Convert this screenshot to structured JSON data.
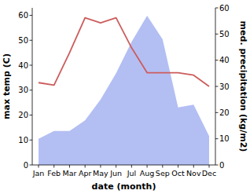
{
  "chart_data": {
    "type": "line",
    "xlabel": "date (month)",
    "ylabel": "max temp (C)",
    "y2label": "med. precipitation (kg/m2)",
    "categories": [
      "Jan",
      "Feb",
      "Mar",
      "Apr",
      "May",
      "Jun",
      "Jul",
      "Aug",
      "Sep",
      "Oct",
      "Nov",
      "Dec"
    ],
    "ylim": [
      0,
      63
    ],
    "yticks": [
      0,
      10,
      20,
      30,
      40,
      50,
      60
    ],
    "y2lim": [
      0,
      60
    ],
    "y2ticks": [
      0,
      10,
      20,
      30,
      40,
      50,
      60
    ],
    "series": [
      {
        "type": "area",
        "axis": "y2",
        "color": "#b3bff3",
        "values": [
          10,
          13,
          13,
          17,
          25,
          35,
          47,
          57,
          48,
          22,
          23,
          11
        ]
      },
      {
        "type": "line",
        "color": "#cd5c5c",
        "values": [
          33,
          32,
          45,
          59,
          57,
          59,
          47,
          37,
          37,
          37,
          36,
          31.5
        ]
      }
    ]
  }
}
